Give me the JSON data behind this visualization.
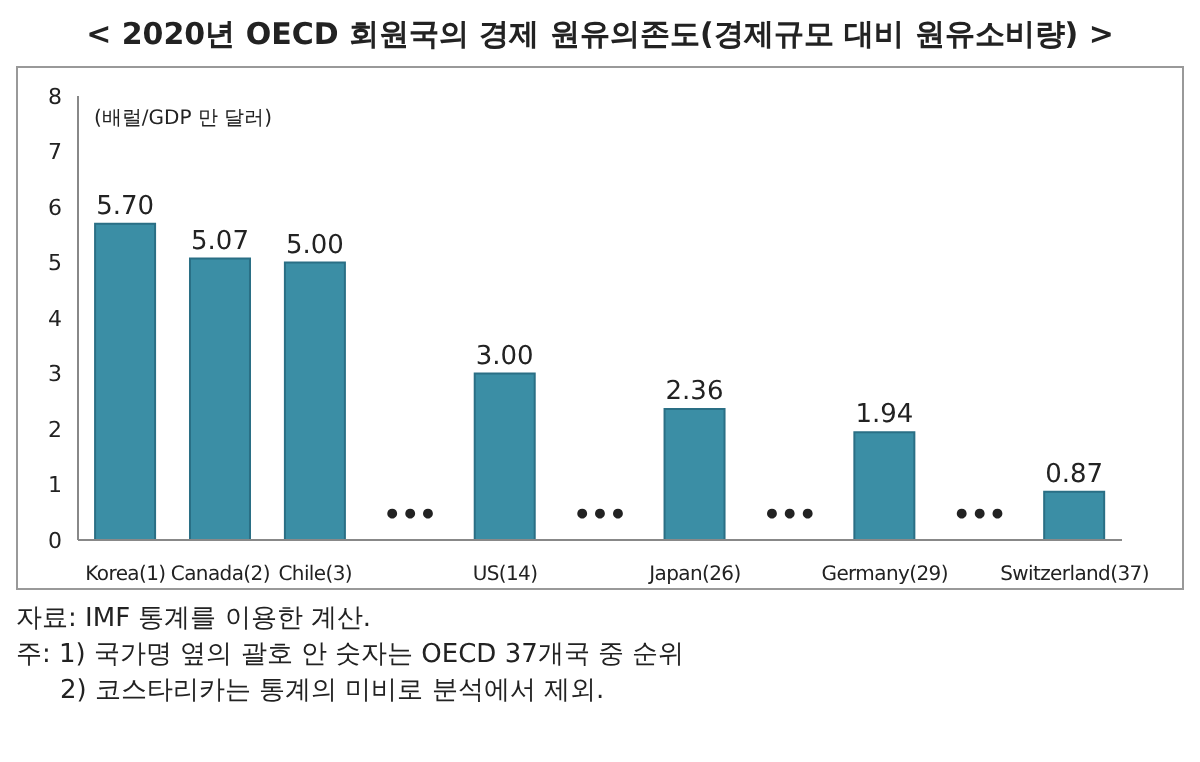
{
  "chart_data": {
    "type": "bar",
    "title": "< 2020년 OECD 회원국의 경제 원유의존도(경제규모 대비 원유소비량) >",
    "ylabel": "(배럴/GDP 만 달러)",
    "categories": [
      "Korea(1)",
      "Canada(2)",
      "Chile(3)",
      "•••",
      "US(14)",
      "•••",
      "Japan(26)",
      "•••",
      "Germany(29)",
      "•••",
      "Switzerland(37)"
    ],
    "values": [
      5.7,
      5.07,
      5.0,
      null,
      3.0,
      null,
      2.36,
      null,
      1.94,
      null,
      0.87
    ],
    "value_labels": [
      "5.70",
      "5.07",
      "5.00",
      null,
      "3.00",
      null,
      "2.36",
      null,
      "1.94",
      null,
      "0.87"
    ],
    "color": "#3b8ea5",
    "ylim": [
      0,
      8
    ],
    "yticks": [
      0,
      1,
      2,
      3,
      4,
      5,
      6,
      7,
      8
    ],
    "grid": false,
    "legend": false,
    "annotations": [
      "자료: IMF 통계를 이용한 계산.",
      "주: 1) 국가명 옆의 괄호 안 숫자는 OECD 37개국 중 순위",
      "2) 코스타리카는 통계의 미비로 분석에서 제외."
    ]
  }
}
